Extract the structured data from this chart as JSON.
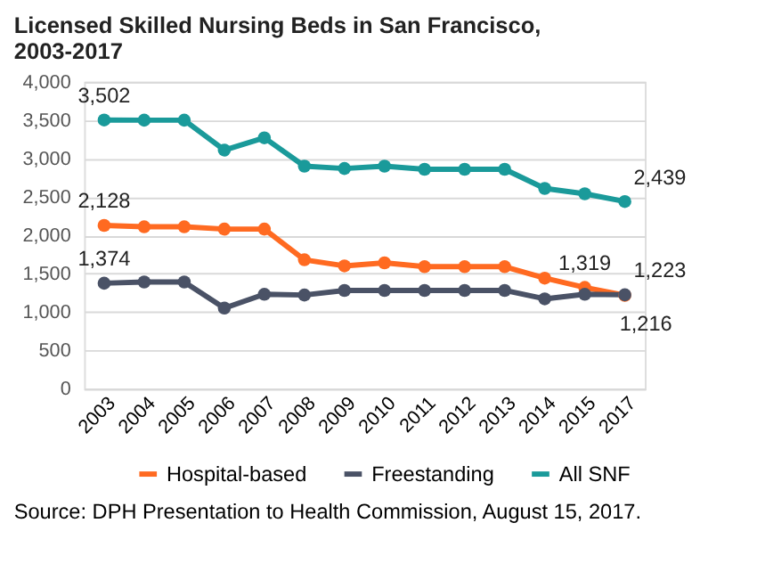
{
  "chart_data": {
    "type": "line",
    "title": "Licensed Skilled Nursing Beds in San Francisco, 2003-2017",
    "categories": [
      "2003",
      "2004",
      "2005",
      "2006",
      "2007",
      "2008",
      "2009",
      "2010",
      "2011",
      "2012",
      "2013",
      "2014",
      "2015",
      "2017"
    ],
    "series": [
      {
        "name": "Hospital-based",
        "color": "#ff6a21",
        "values": [
          2128,
          2110,
          2110,
          2080,
          2080,
          1680,
          1600,
          1640,
          1590,
          1590,
          1590,
          1440,
          1319,
          1216
        ],
        "value_labels": [
          "2,128",
          null,
          null,
          null,
          null,
          null,
          null,
          null,
          null,
          null,
          null,
          null,
          "1,319",
          "1,216"
        ]
      },
      {
        "name": "Freestanding",
        "color": "#4a5266",
        "values": [
          1374,
          1390,
          1390,
          1050,
          1230,
          1220,
          1280,
          1280,
          1280,
          1280,
          1280,
          1170,
          1230,
          1223
        ],
        "value_labels": [
          "1,374",
          null,
          null,
          null,
          null,
          null,
          null,
          null,
          null,
          null,
          null,
          null,
          null,
          "1,223"
        ]
      },
      {
        "name": "All SNF",
        "color": "#1a9a9a",
        "values": [
          3502,
          3500,
          3500,
          3110,
          3270,
          2900,
          2870,
          2900,
          2860,
          2860,
          2860,
          2610,
          2540,
          2439
        ],
        "value_labels": [
          "3,502",
          null,
          null,
          null,
          null,
          null,
          null,
          null,
          null,
          null,
          null,
          null,
          null,
          "2,439"
        ]
      }
    ],
    "ylim": [
      0,
      4000
    ],
    "yticks": [
      0,
      500,
      {
        "value": 1000,
        "label": "1,000"
      },
      {
        "value": 1500,
        "label": "1,500"
      },
      {
        "value": 2000,
        "label": "2,000"
      },
      {
        "value": 2500,
        "label": "2,500"
      },
      {
        "value": 3000,
        "label": "3,000"
      },
      {
        "value": 3500,
        "label": "3,500"
      },
      {
        "value": 4000,
        "label": "4,000"
      }
    ],
    "grid": "y",
    "legend": "bottom",
    "marker": "circle",
    "line_style": "solid",
    "annotations": [
      "Source:  DPH Presentation to Health Commission, August 15, 2017."
    ]
  }
}
